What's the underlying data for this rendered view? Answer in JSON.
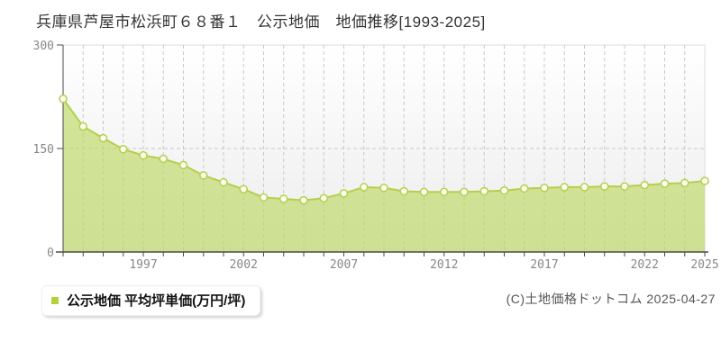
{
  "chart_data": {
    "type": "area",
    "title": "兵庫県芦屋市松浜町６８番１　公示地価　地価推移[1993-2025]",
    "legend": "公示地価 平均坪単価(万円/坪)",
    "xlabel": "",
    "ylabel": "",
    "unit": "万円/坪",
    "x": [
      1993,
      1994,
      1995,
      1996,
      1997,
      1998,
      1999,
      2000,
      2001,
      2002,
      2003,
      2004,
      2005,
      2006,
      2007,
      2008,
      2009,
      2010,
      2011,
      2012,
      2013,
      2014,
      2015,
      2016,
      2017,
      2018,
      2019,
      2020,
      2021,
      2022,
      2023,
      2024,
      2025
    ],
    "values": [
      222,
      182,
      165,
      149,
      140,
      135,
      126,
      111,
      101,
      91,
      79,
      77,
      75,
      78,
      85,
      94,
      93,
      88,
      87,
      87,
      87,
      88,
      89,
      92,
      93,
      94,
      94,
      95,
      95,
      97,
      99,
      100,
      103
    ],
    "ylim": [
      0,
      300
    ],
    "y_ticks": [
      0,
      150,
      300
    ],
    "x_labeled_ticks": [
      1997,
      2002,
      2007,
      2012,
      2017,
      2022,
      2025
    ],
    "grid": "dashed-vertical-per-year-and-horizontal-150",
    "legend_position": "bottom-left",
    "colors": {
      "area_fill": "rgba(189,216,98,0.65)",
      "line": "#b3d04c",
      "marker_fill": "#fdfdf2",
      "grid": "#c8c8c8",
      "axis": "#4a4a4a",
      "tick_label": "#888888",
      "plot_bg_top": "#ffffff",
      "plot_bg_bottom": "#ececec",
      "border": "#dddddd",
      "legend_marker": "#b2d235"
    }
  },
  "footer": {
    "copyright": "(C)土地価格ドットコム 2025-04-27"
  }
}
